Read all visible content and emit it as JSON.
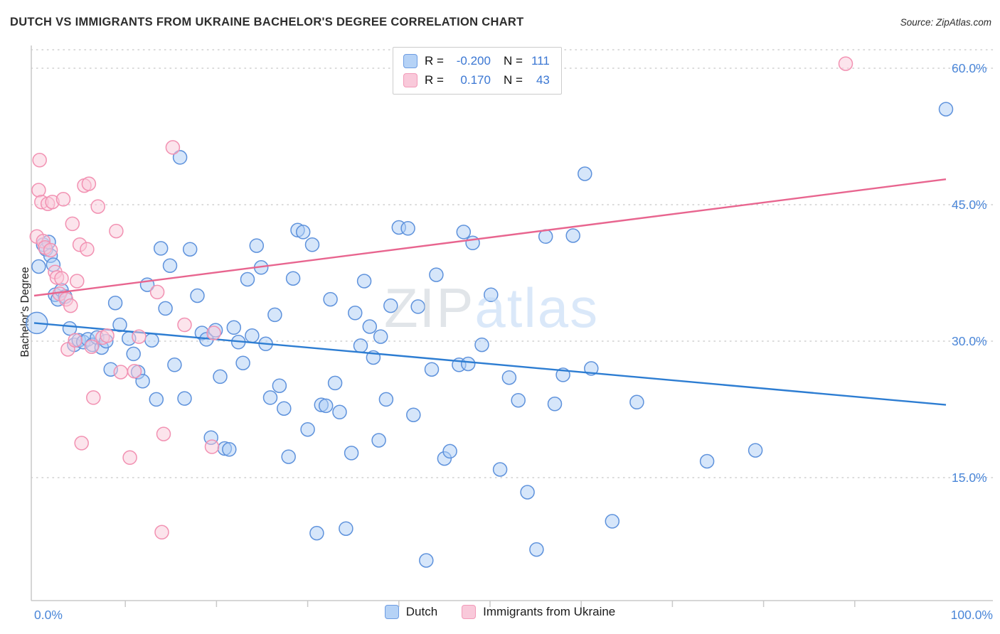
{
  "header": {
    "title": "DUTCH VS IMMIGRANTS FROM UKRAINE BACHELOR'S DEGREE CORRELATION CHART",
    "source": "Source: ZipAtlas.com"
  },
  "watermark": {
    "part1": "ZIP",
    "part2": "atlas"
  },
  "legend_box": {
    "rows": [
      {
        "series": "Dutch",
        "r_label": "R =",
        "r_value": "-0.200",
        "n_label": "N =",
        "n_value": "111",
        "swatch_fill": "#b5d2f6",
        "swatch_stroke": "#6d9ce2"
      },
      {
        "series": "Immigrants from Ukraine",
        "r_label": "R =",
        "r_value": "0.170",
        "n_label": "N =",
        "n_value": "43",
        "swatch_fill": "#f9c9da",
        "swatch_stroke": "#f29ab8"
      }
    ]
  },
  "chart_data": {
    "type": "scatter",
    "title": "DUTCH VS IMMIGRANTS FROM UKRAINE BACHELOR'S DEGREE CORRELATION CHART",
    "xlabel": "",
    "ylabel": "Bachelor's Degree",
    "xlim": [
      0,
      100
    ],
    "ylim": [
      0,
      62.5
    ],
    "grid": "horizontal-dotted",
    "legend_position": "top-center and bottom-center",
    "y_ticks": [
      {
        "value": 60,
        "label": "60.0%"
      },
      {
        "value": 45,
        "label": "45.0%"
      },
      {
        "value": 30,
        "label": "30.0%"
      },
      {
        "value": 15,
        "label": "15.0%"
      }
    ],
    "x_corner_labels": [
      {
        "value": 0,
        "label": "0.0%"
      },
      {
        "value": 100,
        "label": "100.0%"
      }
    ],
    "x_minor_ticks": [
      10,
      20,
      30,
      40,
      50,
      60,
      70,
      80,
      90
    ],
    "axis_label_color": "#4a86d8",
    "series": [
      {
        "name": "Dutch",
        "fill": "#aecdf5",
        "stroke": "#5e92dc",
        "trend_color": "#2d7dd2",
        "trend": {
          "x1": 0,
          "y1": 32.0,
          "x2": 100,
          "y2": 23.0
        },
        "points": [
          [
            0.3,
            32.0,
            15
          ],
          [
            0.5,
            38.2
          ],
          [
            1.0,
            40.6
          ],
          [
            1.3,
            40.1
          ],
          [
            1.6,
            40.9
          ],
          [
            1.8,
            39.4
          ],
          [
            2.1,
            38.4
          ],
          [
            2.3,
            35.1
          ],
          [
            2.6,
            34.6
          ],
          [
            3.0,
            35.6
          ],
          [
            3.4,
            34.9
          ],
          [
            3.9,
            31.4
          ],
          [
            4.4,
            29.6
          ],
          [
            4.9,
            30.1
          ],
          [
            5.4,
            29.9
          ],
          [
            5.9,
            30.2
          ],
          [
            6.4,
            29.6
          ],
          [
            6.9,
            30.4
          ],
          [
            7.4,
            29.3
          ],
          [
            7.9,
            30.0
          ],
          [
            8.4,
            26.9
          ],
          [
            8.9,
            34.2
          ],
          [
            9.4,
            31.8
          ],
          [
            10.4,
            30.3
          ],
          [
            10.9,
            28.6
          ],
          [
            11.4,
            26.6
          ],
          [
            11.9,
            25.6
          ],
          [
            12.4,
            36.2
          ],
          [
            12.9,
            30.1
          ],
          [
            13.4,
            23.6
          ],
          [
            13.9,
            40.2
          ],
          [
            14.4,
            33.6
          ],
          [
            14.9,
            38.3
          ],
          [
            15.4,
            27.4
          ],
          [
            16.0,
            50.2
          ],
          [
            16.5,
            23.7
          ],
          [
            17.1,
            40.1
          ],
          [
            17.9,
            35.0
          ],
          [
            18.4,
            30.9
          ],
          [
            18.9,
            30.2
          ],
          [
            19.4,
            19.4
          ],
          [
            19.9,
            31.2
          ],
          [
            20.4,
            26.1
          ],
          [
            20.9,
            18.2
          ],
          [
            21.4,
            18.1
          ],
          [
            21.9,
            31.5
          ],
          [
            22.4,
            29.9
          ],
          [
            22.9,
            27.6
          ],
          [
            23.4,
            36.8
          ],
          [
            23.9,
            30.6
          ],
          [
            24.4,
            40.5
          ],
          [
            24.9,
            38.1
          ],
          [
            25.4,
            29.7
          ],
          [
            25.9,
            23.8
          ],
          [
            26.4,
            32.9
          ],
          [
            26.9,
            25.1
          ],
          [
            27.4,
            22.6
          ],
          [
            27.9,
            17.3
          ],
          [
            28.4,
            36.9
          ],
          [
            28.9,
            42.2
          ],
          [
            29.5,
            42.0
          ],
          [
            30.0,
            20.3
          ],
          [
            30.5,
            40.6
          ],
          [
            31.0,
            8.9
          ],
          [
            31.5,
            23.0
          ],
          [
            32.0,
            22.9
          ],
          [
            32.5,
            34.6
          ],
          [
            33.0,
            25.4
          ],
          [
            33.5,
            22.2
          ],
          [
            34.2,
            9.4
          ],
          [
            34.8,
            17.7
          ],
          [
            35.2,
            33.1
          ],
          [
            35.8,
            29.5
          ],
          [
            36.2,
            36.6
          ],
          [
            36.8,
            31.6
          ],
          [
            37.2,
            28.2
          ],
          [
            37.8,
            19.1
          ],
          [
            38.0,
            30.5
          ],
          [
            38.6,
            23.6
          ],
          [
            39.1,
            33.9
          ],
          [
            40.0,
            42.5
          ],
          [
            41.0,
            42.4
          ],
          [
            41.6,
            21.9
          ],
          [
            42.1,
            33.8
          ],
          [
            43.0,
            5.9
          ],
          [
            43.6,
            26.9
          ],
          [
            44.1,
            37.3
          ],
          [
            45.0,
            17.1
          ],
          [
            45.6,
            17.9
          ],
          [
            46.6,
            27.4
          ],
          [
            47.1,
            42.0
          ],
          [
            47.6,
            27.5
          ],
          [
            48.1,
            40.8
          ],
          [
            49.1,
            29.6
          ],
          [
            50.1,
            35.1
          ],
          [
            51.1,
            15.9
          ],
          [
            52.1,
            26.0
          ],
          [
            53.1,
            23.5
          ],
          [
            54.1,
            13.4
          ],
          [
            55.1,
            7.1
          ],
          [
            56.1,
            41.5
          ],
          [
            57.1,
            23.1
          ],
          [
            58.0,
            26.3
          ],
          [
            59.1,
            41.6
          ],
          [
            60.4,
            48.4
          ],
          [
            61.1,
            27.0
          ],
          [
            63.4,
            10.2
          ],
          [
            66.1,
            23.3
          ],
          [
            73.8,
            16.8
          ],
          [
            79.1,
            18.0
          ],
          [
            100.0,
            55.5
          ]
        ]
      },
      {
        "name": "Immigrants from Ukraine",
        "fill": "#f9c9da",
        "stroke": "#f291b2",
        "trend_color": "#e8658f",
        "trend": {
          "x1": 0,
          "y1": 35.0,
          "x2": 100,
          "y2": 47.8
        },
        "points": [
          [
            0.3,
            41.5
          ],
          [
            0.5,
            46.6
          ],
          [
            0.6,
            49.9
          ],
          [
            0.8,
            45.3
          ],
          [
            1.0,
            41.0
          ],
          [
            1.2,
            40.3
          ],
          [
            1.5,
            45.1
          ],
          [
            1.8,
            40.0
          ],
          [
            2.0,
            45.3
          ],
          [
            2.3,
            37.6
          ],
          [
            2.5,
            37.0
          ],
          [
            2.8,
            35.2
          ],
          [
            3.0,
            36.9
          ],
          [
            3.2,
            45.6
          ],
          [
            3.5,
            34.6
          ],
          [
            3.7,
            29.1
          ],
          [
            4.0,
            33.9
          ],
          [
            4.2,
            42.9
          ],
          [
            4.5,
            30.1
          ],
          [
            4.7,
            36.6
          ],
          [
            5.0,
            40.6
          ],
          [
            5.2,
            18.8
          ],
          [
            5.5,
            47.1
          ],
          [
            5.8,
            40.1
          ],
          [
            6.0,
            47.3
          ],
          [
            6.3,
            29.4
          ],
          [
            6.5,
            23.8
          ],
          [
            7.0,
            44.8
          ],
          [
            7.5,
            30.4
          ],
          [
            8.0,
            30.6
          ],
          [
            9.0,
            42.1
          ],
          [
            9.5,
            26.6
          ],
          [
            10.5,
            17.2
          ],
          [
            11.0,
            26.7
          ],
          [
            11.5,
            30.5
          ],
          [
            13.5,
            35.4
          ],
          [
            14.0,
            9.0
          ],
          [
            14.2,
            19.8
          ],
          [
            15.2,
            51.3
          ],
          [
            16.5,
            31.8
          ],
          [
            19.5,
            18.4
          ],
          [
            19.7,
            30.9
          ],
          [
            89.0,
            60.5
          ]
        ]
      }
    ]
  }
}
